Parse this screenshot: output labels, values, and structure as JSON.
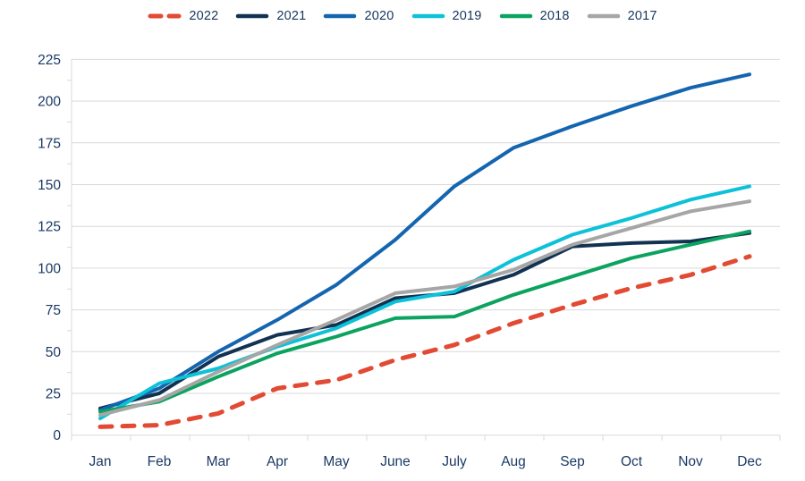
{
  "chart_data": {
    "type": "line",
    "title": "",
    "xlabel": "",
    "ylabel": "",
    "categories": [
      "Jan",
      "Feb",
      "Mar",
      "Apr",
      "May",
      "June",
      "July",
      "Aug",
      "Sep",
      "Oct",
      "Nov",
      "Dec"
    ],
    "series": [
      {
        "name": "2022",
        "color": "#e24a33",
        "dashed": true,
        "values": [
          5,
          6,
          13,
          28,
          33,
          45,
          54,
          67,
          78,
          88,
          96,
          107
        ]
      },
      {
        "name": "2021",
        "color": "#123252",
        "dashed": false,
        "values": [
          16,
          25,
          47,
          60,
          66,
          82,
          85,
          96,
          113,
          115,
          116,
          121
        ]
      },
      {
        "name": "2020",
        "color": "#1465b0",
        "dashed": false,
        "values": [
          15,
          28,
          50,
          69,
          90,
          117,
          149,
          172,
          185,
          197,
          208,
          216
        ]
      },
      {
        "name": "2019",
        "color": "#0cc1d8",
        "dashed": false,
        "values": [
          10,
          31,
          40,
          53,
          64,
          80,
          86,
          105,
          120,
          130,
          141,
          149
        ]
      },
      {
        "name": "2018",
        "color": "#0ba35f",
        "dashed": false,
        "values": [
          14,
          20,
          35,
          49,
          59,
          70,
          71,
          84,
          95,
          106,
          114,
          122
        ]
      },
      {
        "name": "2017",
        "color": "#a6a6a6",
        "dashed": false,
        "values": [
          12,
          21,
          38,
          54,
          69,
          85,
          89,
          99,
          114,
          124,
          134,
          140
        ]
      }
    ],
    "y_ticks": [
      0,
      25,
      50,
      75,
      100,
      125,
      150,
      175,
      200,
      225
    ],
    "ylim": [
      0,
      225
    ],
    "grid": true,
    "legend_position": "top",
    "colors": {
      "grid_line": "#d9d9d9",
      "axis_text": "#1b3a66",
      "legend_text": "#17365d",
      "background": "#ffffff"
    }
  }
}
